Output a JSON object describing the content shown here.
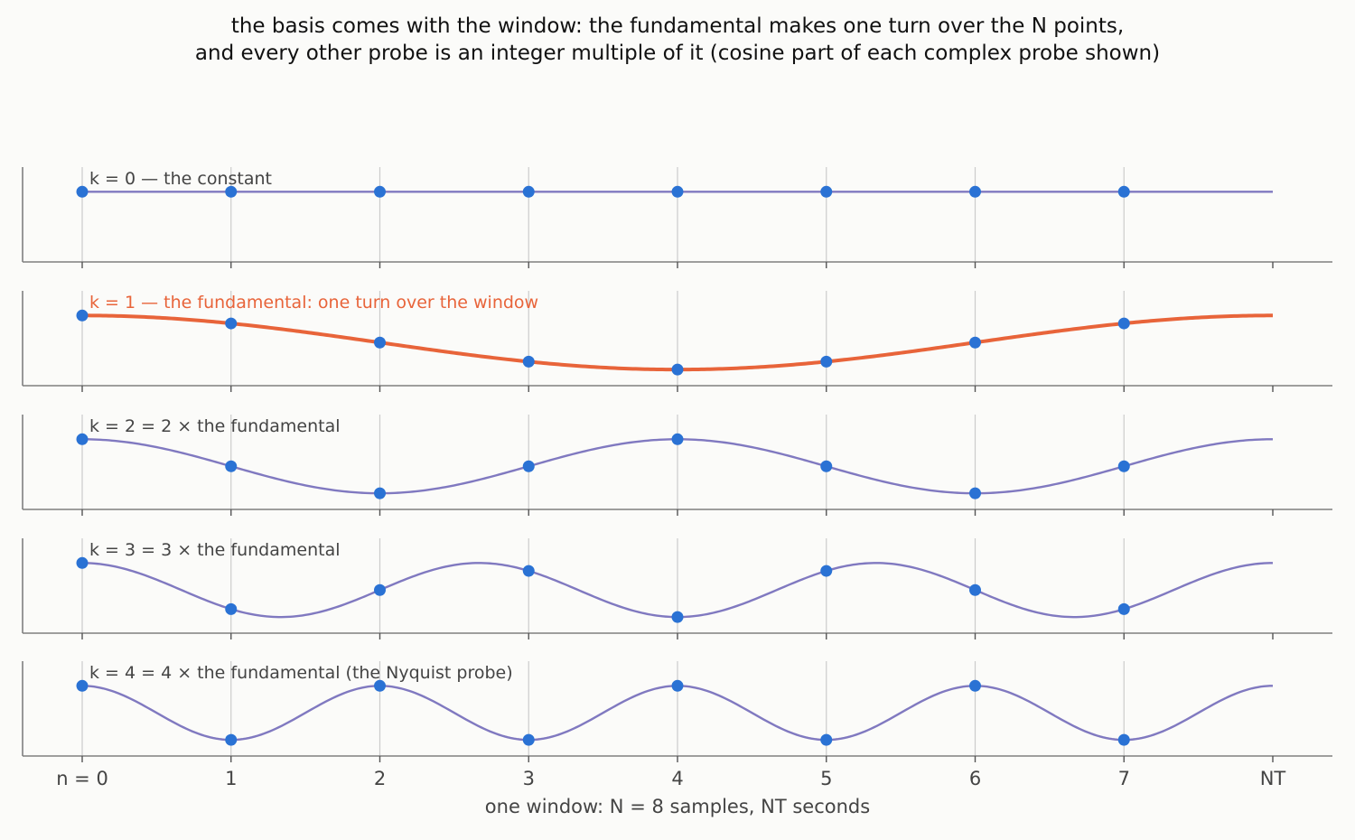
{
  "title_lines": [
    "the basis comes with the window: the fundamental makes one turn over the N points,",
    "and every other probe is an integer multiple of it  (cosine part of each complex probe shown)"
  ],
  "chart_data": {
    "type": "line",
    "N": 8,
    "x_tick_labels": [
      "n = 0",
      "1",
      "2",
      "3",
      "4",
      "5",
      "6",
      "7",
      "NT"
    ],
    "xlabel": "one window: N = 8 samples, NT seconds",
    "ylim": [
      -1.15,
      1.15
    ],
    "grid": "vertical at sample positions",
    "colors": {
      "curve": "#8079c0",
      "highlight": "#e8643a",
      "sample": "#2a72d4",
      "label": "#444444"
    },
    "panels": [
      {
        "k": 0,
        "label": "k = 0 — the constant",
        "highlight": false,
        "samples": [
          1,
          1,
          1,
          1,
          1,
          1,
          1,
          1
        ]
      },
      {
        "k": 1,
        "label": "k = 1 — the fundamental:  one turn over the window",
        "highlight": true,
        "samples": [
          1,
          0.707,
          0,
          -0.707,
          -1,
          -0.707,
          0,
          0.707
        ]
      },
      {
        "k": 2,
        "label": "k = 2  =  2 × the fundamental",
        "highlight": false,
        "samples": [
          1,
          0,
          -1,
          0,
          1,
          0,
          -1,
          0
        ]
      },
      {
        "k": 3,
        "label": "k = 3  =  3 × the fundamental",
        "highlight": false,
        "samples": [
          1,
          -0.707,
          0,
          0.707,
          -1,
          0.707,
          0,
          -0.707
        ]
      },
      {
        "k": 4,
        "label": "k = 4  =  4 × the fundamental  (the Nyquist probe)",
        "highlight": false,
        "samples": [
          1,
          -1,
          1,
          -1,
          1,
          -1,
          1,
          -1
        ]
      }
    ]
  }
}
